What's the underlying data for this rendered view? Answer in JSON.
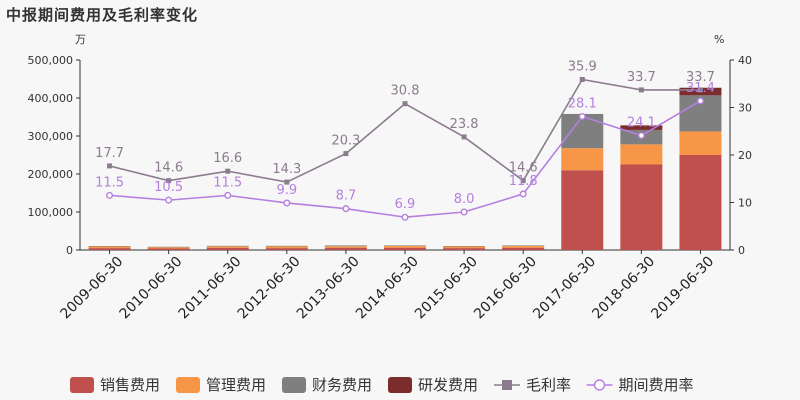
{
  "chart_data": {
    "type": "bar",
    "title": "中报期间费用及毛利率变化",
    "y_left_unit": "万",
    "y_right_unit": "%",
    "ylim_left": [
      0,
      500000
    ],
    "ylim_right": [
      0,
      40
    ],
    "left_ticks": [
      "0",
      "100,000",
      "200,000",
      "300,000",
      "400,000",
      "500,000"
    ],
    "right_ticks": [
      "0",
      "10",
      "20",
      "30",
      "40"
    ],
    "categories": [
      "2009-06-30",
      "2010-06-30",
      "2011-06-30",
      "2012-06-30",
      "2013-06-30",
      "2014-06-30",
      "2015-06-30",
      "2016-06-30",
      "2017-06-30",
      "2018-06-30",
      "2019-06-30"
    ],
    "stacked": true,
    "series": [
      {
        "name": "销售费用",
        "type": "bar",
        "color": "#c0504d",
        "values": [
          5000,
          4000,
          5500,
          5000,
          6000,
          6000,
          5000,
          6000,
          210000,
          225000,
          250000
        ]
      },
      {
        "name": "管理费用",
        "type": "bar",
        "color": "#f79646",
        "values": [
          4500,
          3500,
          4000,
          4500,
          4000,
          5000,
          4500,
          5000,
          58000,
          53000,
          62000
        ]
      },
      {
        "name": "财务费用",
        "type": "bar",
        "color": "#7f7f7f",
        "values": [
          1000,
          1000,
          1500,
          1500,
          2000,
          1000,
          1000,
          1000,
          90000,
          38000,
          95000
        ]
      },
      {
        "name": "研发费用",
        "type": "bar",
        "color": "#7b2c2c",
        "values": [
          0,
          0,
          0,
          0,
          0,
          0,
          0,
          0,
          0,
          12000,
          20000
        ]
      },
      {
        "name": "毛利率",
        "type": "line",
        "axis": "right",
        "color": "#8c7b8e",
        "marker": "square",
        "values": [
          17.7,
          14.6,
          16.6,
          14.3,
          20.3,
          30.8,
          23.8,
          14.6,
          35.9,
          33.7,
          33.7
        ],
        "labels": [
          "17.7",
          "14.6",
          "16.6",
          "14.3",
          "20.3",
          "30.8",
          "23.8",
          "14.6",
          "35.9",
          "33.7",
          "33.7"
        ]
      },
      {
        "name": "期间费用率",
        "type": "line",
        "axis": "right",
        "color": "#b57fe0",
        "marker": "circle",
        "values": [
          11.5,
          10.5,
          11.5,
          9.9,
          8.7,
          6.9,
          8.0,
          11.8,
          28.1,
          24.1,
          31.4
        ],
        "labels": [
          "11.5",
          "10.5",
          "11.5",
          "9.9",
          "8.7",
          "6.9",
          "8.0",
          "11.8",
          "28.1",
          "24.1",
          "31.4"
        ]
      }
    ],
    "legend_position": "bottom"
  }
}
